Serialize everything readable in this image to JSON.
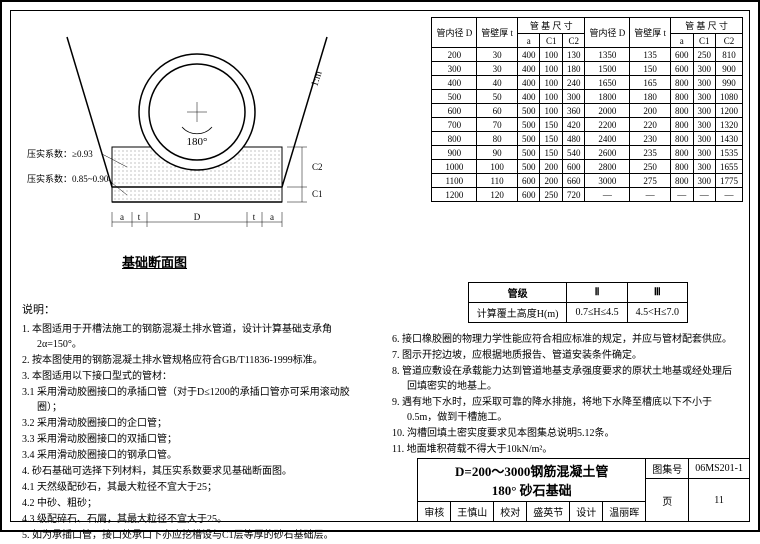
{
  "diagram": {
    "title": "基础断面图",
    "angle_label": "180°",
    "slope_label": "1:m",
    "compaction1": "压实系数：≥0.93",
    "compaction2": "压实系数：0.85~0.90",
    "dim_a": "a",
    "dim_t": "t",
    "dim_D": "D",
    "dim_C1": "C1",
    "dim_C2": "C2",
    "pipe_color": "#ffffff",
    "fill_pattern_color": "#888888",
    "line_color": "#000000"
  },
  "table1": {
    "headers": [
      "管内径\nD",
      "管壁厚\nt",
      "管 基 尺 寸",
      "管内径\nD",
      "管壁厚\nt",
      "管 基 尺 寸"
    ],
    "sub_headers": [
      "a",
      "C1",
      "C2",
      "a",
      "C1",
      "C2"
    ],
    "rows": [
      [
        "200",
        "30",
        "400",
        "100",
        "130",
        "1350",
        "135",
        "600",
        "250",
        "810"
      ],
      [
        "300",
        "30",
        "400",
        "100",
        "180",
        "1500",
        "150",
        "600",
        "300",
        "900"
      ],
      [
        "400",
        "40",
        "400",
        "100",
        "240",
        "1650",
        "165",
        "800",
        "300",
        "990"
      ],
      [
        "500",
        "50",
        "400",
        "100",
        "300",
        "1800",
        "180",
        "800",
        "300",
        "1080"
      ],
      [
        "600",
        "60",
        "500",
        "100",
        "360",
        "2000",
        "200",
        "800",
        "300",
        "1200"
      ],
      [
        "700",
        "70",
        "500",
        "150",
        "420",
        "2200",
        "220",
        "800",
        "300",
        "1320"
      ],
      [
        "800",
        "80",
        "500",
        "150",
        "480",
        "2400",
        "230",
        "800",
        "300",
        "1430"
      ],
      [
        "900",
        "90",
        "500",
        "150",
        "540",
        "2600",
        "235",
        "800",
        "300",
        "1535"
      ],
      [
        "1000",
        "100",
        "500",
        "200",
        "600",
        "2800",
        "250",
        "800",
        "300",
        "1655"
      ],
      [
        "1100",
        "110",
        "600",
        "200",
        "660",
        "3000",
        "275",
        "800",
        "300",
        "1775"
      ],
      [
        "1200",
        "120",
        "600",
        "250",
        "720",
        "—",
        "—",
        "—",
        "—",
        "—"
      ]
    ]
  },
  "table2": {
    "headers": [
      "管级",
      "Ⅱ",
      "Ⅲ"
    ],
    "row": [
      "计算覆土高度H(m)",
      "0.7≤H≤4.5",
      "4.5<H≤7.0"
    ]
  },
  "notes": {
    "label": "说明：",
    "left": [
      "1. 本图适用于开槽法施工的钢筋混凝土排水管道，设计计算基础支承角2α=150°。",
      "2. 按本图使用的钢筋混凝土排水管规格应符合GB/T11836-1999标准。",
      "3. 本图适用以下接口型式的管材：",
      "3.1 采用滑动胶圈接口的承插口管（对于D≤1200的承插口管亦可采用滚动胶圈）；",
      "3.2 采用滑动胶圈接口的企口管；",
      "3.3 采用滑动胶圈接口的双插口管；",
      "3.4 采用滑动胶圈接口的钢承口管。",
      "4. 砂石基础可选择下列材料，其压实系数要求见基础断面图。",
      "4.1 天然级配砂石，其最大粒径不宜大于25；",
      "4.2 中砂、粗砂；",
      "4.3 级配碎石、石屑，其最大粒径不宜大于25。",
      "5. 如为承插口管，接口处承口下亦应挖槽设与C1层等厚的砂石基础层。"
    ],
    "right": [
      "6. 接口橡胶圈的物理力学性能应符合相应标准的规定，并应与管材配套供应。",
      "7. 图示开挖边坡，应根据地质报告、管道安装条件确定。",
      "8. 管道应敷设在承载能力达到管道地基支承强度要求的原状土地基或经处理后回填密实的地基上。",
      "9. 遇有地下水时，应采取可靠的降水排施，将地下水降至槽底以下不小于0.5m，做到干槽施工。",
      "10. 沟槽回填土密实度要求见本图集总说明5.12条。",
      "11. 地面堆积荷载不得大于10kN/m²。"
    ]
  },
  "title_block": {
    "main_line1": "D=200～3000钢筋混凝土管",
    "main_line2": "180° 砂石基础",
    "set_label": "图集号",
    "set_no": "06MS201-1",
    "审核": "审核",
    "审核_name": "王慎山",
    "校对": "校对",
    "校对_name": "盛英节",
    "设计": "设计",
    "设计_name": "温丽晖",
    "页": "页",
    "页_no": "11"
  }
}
